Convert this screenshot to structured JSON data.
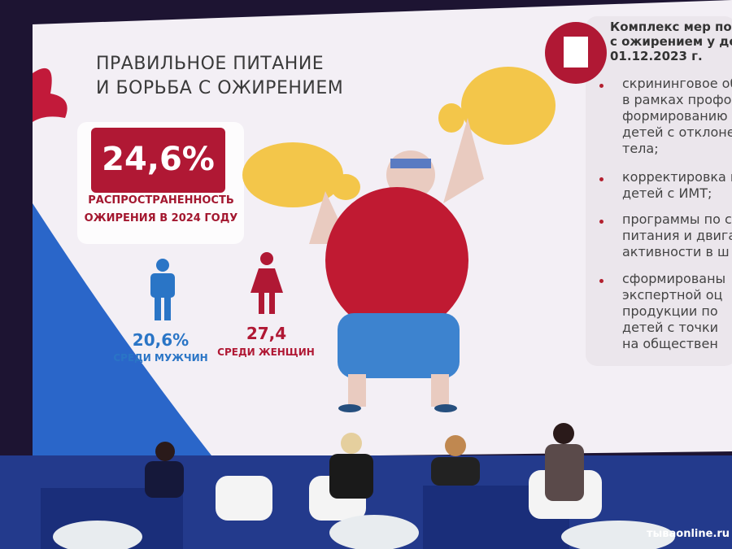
{
  "slide": {
    "title": [
      "ПРАВИЛЬНОЕ ПИТАНИЕ",
      "И БОРЬБА С ОЖИРЕНИЕМ"
    ],
    "main_stat": {
      "value": "24,6%",
      "caption": [
        "РАСПРОСТРАНЕННОСТЬ",
        "ОЖИРЕНИЯ В 2024 ГОДУ"
      ]
    },
    "men": {
      "value": "20,6%",
      "label": "СРЕДИ МУЖЧИН"
    },
    "women": {
      "value": "27,4",
      "label": "СРЕДИ ЖЕНЩИН"
    },
    "measures": {
      "heading": [
        "Комплекс мер по",
        "с ожирением у де",
        "01.12.2023 г."
      ],
      "items": [
        [
          "скрининговое обс",
          "в рамках профос",
          "формированию г",
          "детей с отклонен",
          "тела;"
        ],
        [
          "корректировка м",
          "детей с ИМТ;"
        ],
        [
          "программы по с",
          "питания и двига",
          "активности в ш"
        ],
        [
          "сформированы",
          "экспертной оц",
          "продукции по",
          "детей с точки",
          "на обществен"
        ]
      ]
    }
  },
  "watermark": "тываonline.ru"
}
